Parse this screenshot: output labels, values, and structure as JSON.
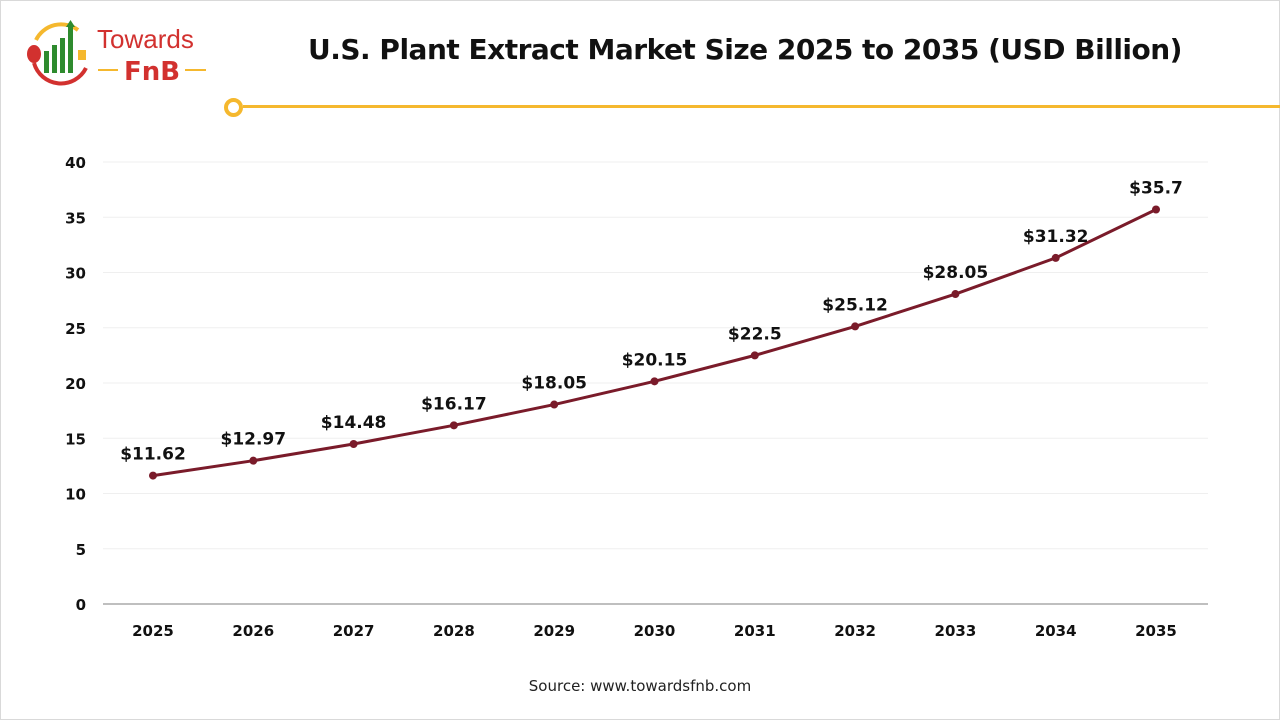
{
  "logo": {
    "line1": "Towards",
    "line2": "FnB"
  },
  "colors": {
    "line": "#7a1b2a",
    "accent": "#f5b82e",
    "logo_red": "#d2312f",
    "logo_green": "#2e8b2e"
  },
  "source": "Source: www.towardsfnb.com",
  "chart_data": {
    "type": "line",
    "title": "U.S. Plant Extract Market Size 2025 to 2035 (USD Billion)",
    "categories": [
      "2025",
      "2026",
      "2027",
      "2028",
      "2029",
      "2030",
      "2031",
      "2032",
      "2033",
      "2034",
      "2035"
    ],
    "values": [
      11.62,
      12.97,
      14.48,
      16.17,
      18.05,
      20.15,
      22.5,
      25.12,
      28.05,
      31.32,
      35.7
    ],
    "data_labels": [
      "$11.62",
      "$12.97",
      "$14.48",
      "$16.17",
      "$18.05",
      "$20.15",
      "$22.5",
      "$25.12",
      "$28.05",
      "$31.32",
      "$35.7"
    ],
    "ylim": [
      0,
      40
    ],
    "yticks": [
      0,
      5,
      10,
      15,
      20,
      25,
      30,
      35,
      40
    ],
    "grid": true,
    "legend": "none"
  }
}
